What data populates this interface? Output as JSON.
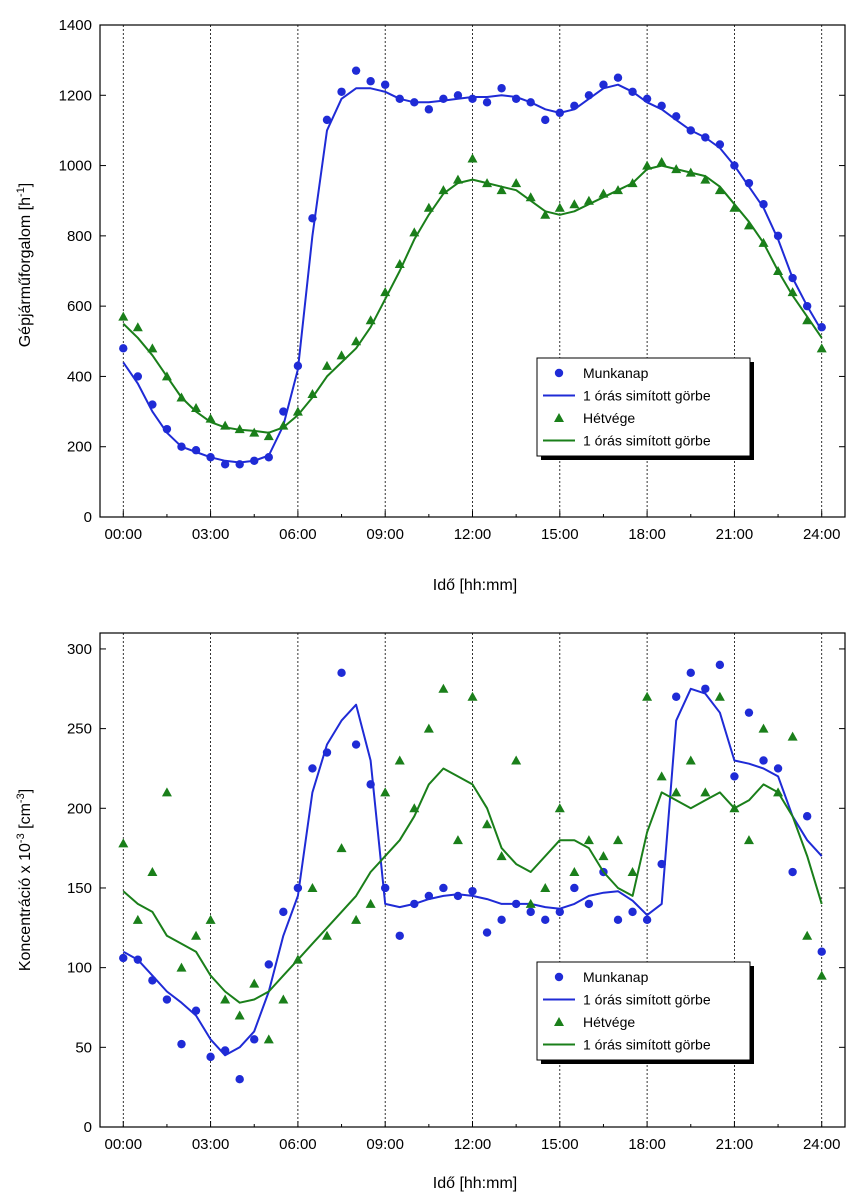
{
  "colors": {
    "blue": "#1f2bd6",
    "green": "#1a7f1a"
  },
  "chart_data": [
    {
      "type": "line",
      "xlabel": "Idő    [hh:mm]",
      "ylabel_main": "Gépjárműforgalom   [h",
      "ylabel_sup": "-1",
      "ylabel_end": "]",
      "xlim": [
        -0.8,
        24.8
      ],
      "ylim": [
        0,
        1400
      ],
      "x_ticks": [
        0,
        3,
        6,
        9,
        12,
        15,
        18,
        21,
        24
      ],
      "x_tick_labels": [
        "00:00",
        "03:00",
        "06:00",
        "09:00",
        "12:00",
        "15:00",
        "18:00",
        "21:00",
        "24:00"
      ],
      "y_ticks": [
        0,
        200,
        400,
        600,
        800,
        1000,
        1200,
        1400
      ],
      "y_tick_labels": [
        "0",
        "200",
        "400",
        "600",
        "800",
        "1000",
        "1200",
        "1400"
      ],
      "legend_position": "lower-right",
      "legend": [
        "Munkanap",
        "1 órás simított görbe",
        "Hétvége",
        "1 órás simított görbe"
      ],
      "series": [
        {
          "kind": "points",
          "marker": "circle",
          "color": "#1f2bd6",
          "x": [
            0.0,
            0.5,
            1.0,
            1.5,
            2.0,
            2.5,
            3.0,
            3.5,
            4.0,
            4.5,
            5.0,
            5.5,
            6.0,
            6.5,
            7.0,
            7.5,
            8.0,
            8.5,
            9.0,
            9.5,
            10.0,
            10.5,
            11.0,
            11.5,
            12.0,
            12.5,
            13.0,
            13.5,
            14.0,
            14.5,
            15.0,
            15.5,
            16.0,
            16.5,
            17.0,
            17.5,
            18.0,
            18.5,
            19.0,
            19.5,
            20.0,
            20.5,
            21.0,
            21.5,
            22.0,
            22.5,
            23.0,
            23.5,
            24.0
          ],
          "y": [
            480,
            400,
            320,
            250,
            200,
            190,
            170,
            150,
            150,
            160,
            170,
            300,
            430,
            850,
            1130,
            1210,
            1270,
            1240,
            1230,
            1190,
            1180,
            1160,
            1190,
            1200,
            1190,
            1180,
            1220,
            1190,
            1180,
            1130,
            1150,
            1170,
            1200,
            1230,
            1250,
            1210,
            1190,
            1170,
            1140,
            1100,
            1080,
            1060,
            1000,
            950,
            890,
            800,
            680,
            600,
            540
          ]
        },
        {
          "kind": "line",
          "color": "#1f2bd6",
          "x": [
            0.0,
            0.5,
            1.0,
            1.5,
            2.0,
            2.5,
            3.0,
            3.5,
            4.0,
            4.5,
            5.0,
            5.5,
            6.0,
            6.5,
            7.0,
            7.5,
            8.0,
            8.5,
            9.0,
            9.5,
            10.0,
            10.5,
            11.0,
            11.5,
            12.0,
            12.5,
            13.0,
            13.5,
            14.0,
            14.5,
            15.0,
            15.5,
            16.0,
            16.5,
            17.0,
            17.5,
            18.0,
            18.5,
            19.0,
            19.5,
            20.0,
            20.5,
            21.0,
            21.5,
            22.0,
            22.5,
            23.0,
            23.5,
            24.0
          ],
          "y": [
            440,
            380,
            300,
            240,
            200,
            185,
            170,
            160,
            155,
            160,
            175,
            260,
            420,
            800,
            1100,
            1190,
            1220,
            1220,
            1210,
            1190,
            1180,
            1180,
            1185,
            1190,
            1195,
            1195,
            1200,
            1195,
            1180,
            1160,
            1150,
            1160,
            1190,
            1220,
            1230,
            1210,
            1180,
            1160,
            1130,
            1100,
            1080,
            1050,
            1000,
            940,
            880,
            790,
            680,
            600,
            530
          ]
        },
        {
          "kind": "points",
          "marker": "triangle",
          "color": "#1a7f1a",
          "x": [
            0.0,
            0.5,
            1.0,
            1.5,
            2.0,
            2.5,
            3.0,
            3.5,
            4.0,
            4.5,
            5.0,
            5.5,
            6.0,
            6.5,
            7.0,
            7.5,
            8.0,
            8.5,
            9.0,
            9.5,
            10.0,
            10.5,
            11.0,
            11.5,
            12.0,
            12.5,
            13.0,
            13.5,
            14.0,
            14.5,
            15.0,
            15.5,
            16.0,
            16.5,
            17.0,
            17.5,
            18.0,
            18.5,
            19.0,
            19.5,
            20.0,
            20.5,
            21.0,
            21.5,
            22.0,
            22.5,
            23.0,
            23.5,
            24.0
          ],
          "y": [
            570,
            540,
            480,
            400,
            340,
            310,
            280,
            260,
            250,
            240,
            230,
            260,
            300,
            350,
            430,
            460,
            500,
            560,
            640,
            720,
            810,
            880,
            930,
            960,
            1020,
            950,
            930,
            950,
            910,
            860,
            880,
            890,
            900,
            920,
            930,
            950,
            1000,
            1010,
            990,
            980,
            960,
            930,
            880,
            830,
            780,
            700,
            640,
            560,
            480
          ]
        },
        {
          "kind": "line",
          "color": "#1a7f1a",
          "x": [
            0.0,
            0.5,
            1.0,
            1.5,
            2.0,
            2.5,
            3.0,
            3.5,
            4.0,
            4.5,
            5.0,
            5.5,
            6.0,
            6.5,
            7.0,
            7.5,
            8.0,
            8.5,
            9.0,
            9.5,
            10.0,
            10.5,
            11.0,
            11.5,
            12.0,
            12.5,
            13.0,
            13.5,
            14.0,
            14.5,
            15.0,
            15.5,
            16.0,
            16.5,
            17.0,
            17.5,
            18.0,
            18.5,
            19.0,
            19.5,
            20.0,
            20.5,
            21.0,
            21.5,
            22.0,
            22.5,
            23.0,
            23.5,
            24.0
          ],
          "y": [
            550,
            510,
            460,
            400,
            340,
            300,
            270,
            255,
            248,
            245,
            240,
            255,
            290,
            340,
            400,
            440,
            480,
            540,
            620,
            700,
            790,
            860,
            920,
            950,
            960,
            950,
            940,
            930,
            900,
            870,
            860,
            870,
            890,
            910,
            930,
            950,
            990,
            1000,
            990,
            980,
            970,
            940,
            890,
            840,
            780,
            700,
            630,
            570,
            510
          ]
        }
      ]
    },
    {
      "type": "line",
      "xlabel": "Idő    [hh:mm]",
      "ylabel_main": "Koncentráció x 10",
      "ylabel_sup": "-3",
      "ylabel_mid": "  [cm",
      "ylabel_sup2": "-3",
      "ylabel_end": "]",
      "xlim": [
        -0.8,
        24.8
      ],
      "ylim": [
        0,
        310
      ],
      "x_ticks": [
        0,
        3,
        6,
        9,
        12,
        15,
        18,
        21,
        24
      ],
      "x_tick_labels": [
        "00:00",
        "03:00",
        "06:00",
        "09:00",
        "12:00",
        "15:00",
        "18:00",
        "21:00",
        "24:00"
      ],
      "y_ticks": [
        0,
        50,
        100,
        150,
        200,
        250,
        300
      ],
      "y_tick_labels": [
        "0",
        "50",
        "100",
        "150",
        "200",
        "250",
        "300"
      ],
      "legend_position": "lower-right",
      "legend": [
        "Munkanap",
        "1 órás simított görbe",
        "Hétvége",
        "1 órás simított görbe"
      ],
      "series": [
        {
          "kind": "points",
          "marker": "circle",
          "color": "#1f2bd6",
          "x": [
            0.0,
            0.5,
            1.0,
            1.5,
            2.0,
            2.5,
            3.0,
            3.5,
            4.0,
            4.5,
            5.0,
            5.5,
            6.0,
            6.5,
            7.0,
            7.5,
            8.0,
            8.5,
            9.0,
            9.5,
            10.0,
            10.5,
            11.0,
            11.5,
            12.0,
            12.5,
            13.0,
            13.5,
            14.0,
            14.5,
            15.0,
            15.5,
            16.0,
            16.5,
            17.0,
            17.5,
            18.0,
            18.5,
            19.0,
            19.5,
            20.0,
            20.5,
            21.0,
            21.5,
            22.0,
            22.5,
            23.0,
            23.5,
            24.0
          ],
          "y": [
            106,
            105,
            92,
            80,
            52,
            73,
            44,
            48,
            30,
            55,
            102,
            135,
            150,
            225,
            235,
            285,
            240,
            215,
            150,
            120,
            140,
            145,
            150,
            145,
            148,
            122,
            130,
            140,
            135,
            130,
            135,
            150,
            140,
            160,
            130,
            135,
            130,
            165,
            270,
            285,
            275,
            290,
            220,
            260,
            230,
            225,
            160,
            195,
            110
          ]
        },
        {
          "kind": "line",
          "color": "#1f2bd6",
          "x": [
            0.0,
            0.5,
            1.0,
            1.5,
            2.0,
            2.5,
            3.0,
            3.5,
            4.0,
            4.5,
            5.0,
            5.5,
            6.0,
            6.5,
            7.0,
            7.5,
            8.0,
            8.5,
            9.0,
            9.5,
            10.0,
            10.5,
            11.0,
            11.5,
            12.0,
            12.5,
            13.0,
            13.5,
            14.0,
            14.5,
            15.0,
            15.5,
            16.0,
            16.5,
            17.0,
            17.5,
            18.0,
            18.5,
            19.0,
            19.5,
            20.0,
            20.5,
            21.0,
            21.5,
            22.0,
            22.5,
            23.0,
            23.5,
            24.0
          ],
          "y": [
            110,
            105,
            95,
            85,
            78,
            70,
            55,
            45,
            50,
            60,
            85,
            120,
            145,
            210,
            240,
            255,
            265,
            230,
            140,
            138,
            140,
            143,
            145,
            146,
            145,
            143,
            140,
            140,
            140,
            138,
            137,
            140,
            145,
            147,
            148,
            142,
            133,
            140,
            255,
            275,
            272,
            260,
            230,
            228,
            225,
            220,
            195,
            180,
            170
          ]
        },
        {
          "kind": "points",
          "marker": "triangle",
          "color": "#1a7f1a",
          "x": [
            0.0,
            0.5,
            1.0,
            1.5,
            2.0,
            2.5,
            3.0,
            3.5,
            4.0,
            4.5,
            5.0,
            5.5,
            6.0,
            6.5,
            7.0,
            7.5,
            8.0,
            8.5,
            9.0,
            9.5,
            10.0,
            10.5,
            11.0,
            11.5,
            12.0,
            12.5,
            13.0,
            13.5,
            14.0,
            14.5,
            15.0,
            15.5,
            16.0,
            16.5,
            17.0,
            17.5,
            18.0,
            18.5,
            19.0,
            19.5,
            20.0,
            20.5,
            21.0,
            21.5,
            22.0,
            22.5,
            23.0,
            23.5,
            24.0
          ],
          "y": [
            178,
            130,
            160,
            210,
            100,
            120,
            130,
            80,
            70,
            90,
            55,
            80,
            105,
            150,
            120,
            175,
            130,
            140,
            210,
            230,
            200,
            250,
            275,
            180,
            270,
            190,
            170,
            230,
            140,
            150,
            200,
            160,
            180,
            170,
            180,
            160,
            270,
            220,
            210,
            230,
            210,
            270,
            200,
            180,
            250,
            210,
            245,
            120,
            95
          ]
        },
        {
          "kind": "line",
          "color": "#1a7f1a",
          "x": [
            0.0,
            0.5,
            1.0,
            1.5,
            2.0,
            2.5,
            3.0,
            3.5,
            4.0,
            4.5,
            5.0,
            5.5,
            6.0,
            6.5,
            7.0,
            7.5,
            8.0,
            8.5,
            9.0,
            9.5,
            10.0,
            10.5,
            11.0,
            11.5,
            12.0,
            12.5,
            13.0,
            13.5,
            14.0,
            14.5,
            15.0,
            15.5,
            16.0,
            16.5,
            17.0,
            17.5,
            18.0,
            18.5,
            19.0,
            19.5,
            20.0,
            20.5,
            21.0,
            21.5,
            22.0,
            22.5,
            23.0,
            23.5,
            24.0
          ],
          "y": [
            148,
            140,
            135,
            120,
            115,
            110,
            95,
            85,
            78,
            80,
            85,
            95,
            105,
            115,
            125,
            135,
            145,
            160,
            170,
            180,
            195,
            215,
            225,
            220,
            215,
            200,
            175,
            165,
            160,
            170,
            180,
            180,
            175,
            160,
            150,
            145,
            185,
            210,
            205,
            200,
            205,
            210,
            200,
            205,
            215,
            210,
            195,
            170,
            140
          ]
        }
      ]
    }
  ]
}
